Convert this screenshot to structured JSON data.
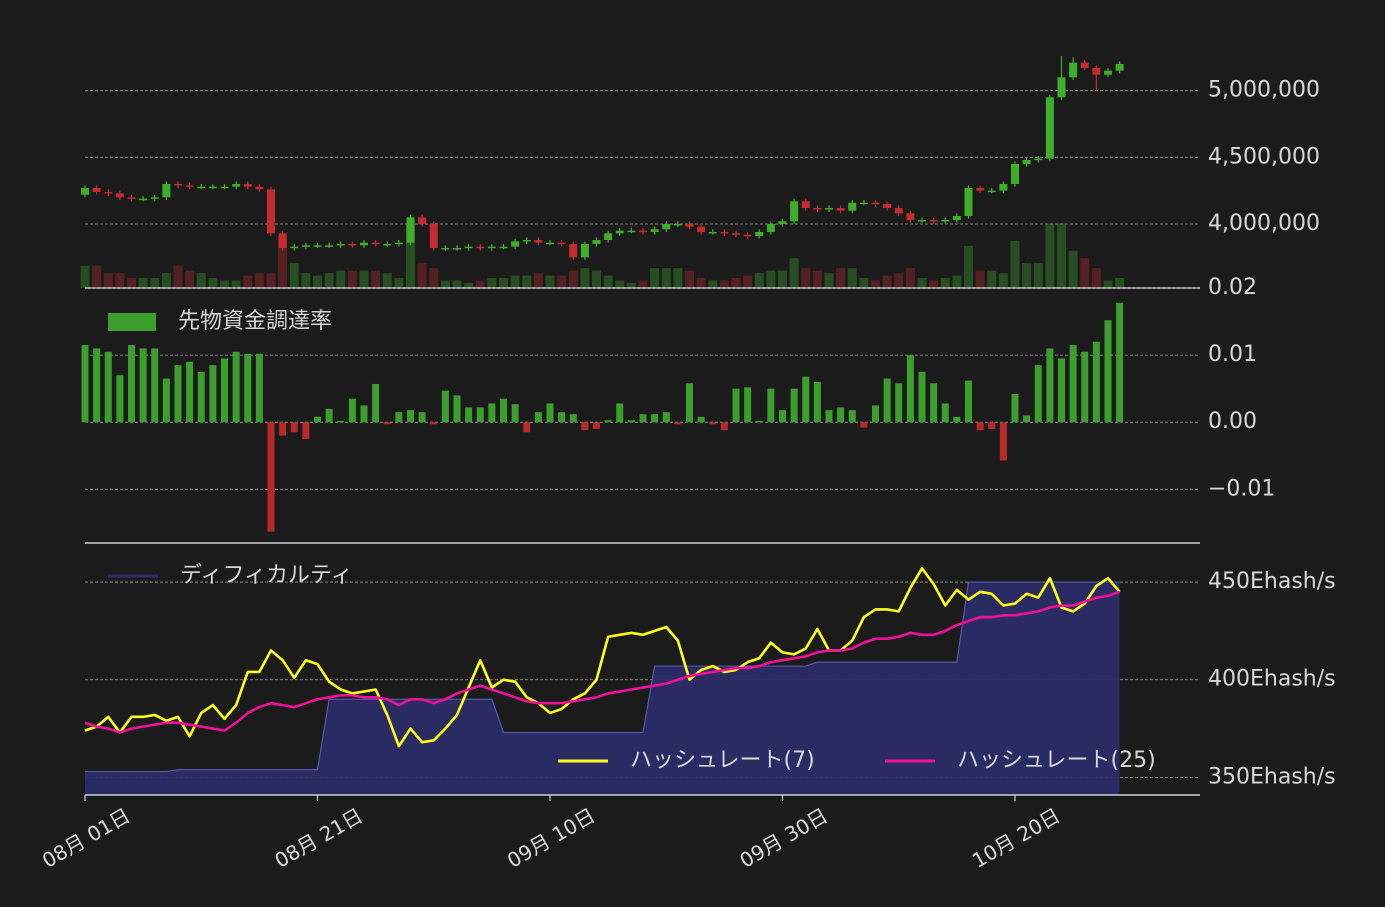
{
  "chart_data": [
    {
      "type": "candlestick",
      "up_color": "#3fae2a",
      "down_color": "#c42a30",
      "open": [
        4220000,
        4270000,
        4240000,
        4230000,
        4200000,
        4190000,
        4190000,
        4200000,
        4300000,
        4290000,
        4280000,
        4280000,
        4280000,
        4280000,
        4300000,
        4280000,
        4260000,
        3930000,
        3820000,
        3830000,
        3840000,
        3840000,
        3840000,
        3850000,
        3840000,
        3860000,
        3850000,
        3850000,
        3860000,
        4050000,
        4000000,
        3820000,
        3820000,
        3820000,
        3830000,
        3820000,
        3830000,
        3830000,
        3870000,
        3880000,
        3860000,
        3860000,
        3850000,
        3750000,
        3850000,
        3880000,
        3930000,
        3950000,
        3950000,
        3940000,
        3960000,
        4000000,
        4000000,
        3980000,
        3940000,
        3940000,
        3930000,
        3920000,
        3910000,
        3940000,
        4000000,
        4020000,
        4170000,
        4120000,
        4110000,
        4120000,
        4100000,
        4160000,
        4160000,
        4150000,
        4120000,
        4080000,
        4030000,
        4030000,
        4020000,
        4030000,
        4060000,
        4270000,
        4250000,
        4250000,
        4300000,
        4450000,
        4480000,
        4490000,
        4950000,
        5100000,
        5210000,
        5170000,
        5120000,
        5150000
      ],
      "high": [
        4290000,
        4290000,
        4260000,
        4250000,
        4220000,
        4210000,
        4220000,
        4320000,
        4320000,
        4310000,
        4300000,
        4300000,
        4300000,
        4320000,
        4320000,
        4300000,
        4280000,
        3950000,
        3850000,
        3860000,
        3860000,
        3860000,
        3870000,
        3870000,
        3880000,
        3880000,
        3870000,
        3880000,
        4070000,
        4070000,
        4020000,
        3840000,
        3840000,
        3850000,
        3850000,
        3850000,
        3850000,
        3890000,
        3900000,
        3900000,
        3880000,
        3880000,
        3870000,
        3870000,
        3900000,
        3950000,
        3970000,
        3970000,
        3970000,
        3980000,
        4020000,
        4020000,
        4020000,
        4000000,
        3960000,
        3960000,
        3950000,
        3940000,
        3960000,
        4020000,
        4040000,
        4190000,
        4190000,
        4140000,
        4140000,
        4140000,
        4180000,
        4180000,
        4180000,
        4170000,
        4140000,
        4100000,
        4050000,
        4050000,
        4050000,
        4080000,
        4290000,
        4290000,
        4270000,
        4320000,
        4470000,
        4500000,
        4510000,
        4970000,
        5260000,
        5250000,
        5230000,
        5190000,
        5170000,
        5220000
      ],
      "low": [
        4200000,
        4220000,
        4210000,
        4180000,
        4170000,
        4170000,
        4170000,
        4180000,
        4270000,
        4260000,
        4260000,
        4260000,
        4260000,
        4260000,
        4260000,
        4240000,
        3910000,
        3800000,
        3800000,
        3810000,
        3820000,
        3820000,
        3820000,
        3820000,
        3820000,
        3830000,
        3830000,
        3830000,
        3840000,
        3980000,
        3800000,
        3800000,
        3800000,
        3800000,
        3800000,
        3800000,
        3810000,
        3810000,
        3850000,
        3840000,
        3840000,
        3830000,
        3730000,
        3730000,
        3830000,
        3860000,
        3910000,
        3930000,
        3920000,
        3920000,
        3940000,
        3980000,
        3960000,
        3920000,
        3920000,
        3910000,
        3900000,
        3890000,
        3890000,
        3920000,
        3980000,
        4000000,
        4100000,
        4090000,
        4090000,
        4080000,
        4080000,
        4140000,
        4130000,
        4100000,
        4060000,
        4010000,
        4010000,
        4000000,
        4000000,
        4010000,
        4040000,
        4230000,
        4230000,
        4230000,
        4280000,
        4430000,
        4460000,
        4470000,
        4930000,
        5080000,
        5150000,
        5000000,
        5100000,
        5130000
      ],
      "close": [
        4270000,
        4240000,
        4230000,
        4200000,
        4190000,
        4190000,
        4200000,
        4300000,
        4290000,
        4280000,
        4280000,
        4280000,
        4280000,
        4300000,
        4280000,
        4260000,
        3930000,
        3820000,
        3830000,
        3840000,
        3840000,
        3840000,
        3850000,
        3840000,
        3860000,
        3850000,
        3850000,
        3860000,
        4050000,
        4000000,
        3820000,
        3820000,
        3820000,
        3830000,
        3820000,
        3830000,
        3830000,
        3870000,
        3880000,
        3860000,
        3860000,
        3850000,
        3750000,
        3850000,
        3880000,
        3930000,
        3950000,
        3950000,
        3940000,
        3960000,
        4000000,
        4000000,
        3980000,
        3940000,
        3940000,
        3930000,
        3920000,
        3910000,
        3940000,
        4000000,
        4020000,
        4170000,
        4120000,
        4110000,
        4120000,
        4100000,
        4160000,
        4160000,
        4150000,
        4120000,
        4080000,
        4030000,
        4030000,
        4020000,
        4030000,
        4060000,
        4270000,
        4250000,
        4250000,
        4300000,
        4450000,
        4480000,
        4490000,
        4950000,
        5100000,
        5210000,
        5170000,
        5120000,
        5150000,
        5200000
      ],
      "volume": {
        "axis": "y2",
        "values": [
          9,
          9,
          6,
          6,
          4,
          4,
          4,
          6,
          9,
          7,
          6,
          4,
          3,
          3,
          5,
          6,
          6,
          21,
          10,
          6,
          5,
          6,
          7,
          7,
          7,
          7,
          6,
          4,
          26,
          10,
          8,
          3,
          3,
          2,
          3,
          4,
          4,
          5,
          5,
          6,
          5,
          5,
          7,
          8,
          7,
          5,
          3,
          2,
          3,
          8,
          8,
          8,
          7,
          4,
          3,
          3,
          4,
          5,
          6,
          7,
          7,
          12,
          8,
          7,
          6,
          8,
          8,
          4,
          3,
          5,
          6,
          8,
          4,
          3,
          4,
          5,
          17,
          7,
          7,
          6,
          19,
          10,
          10,
          26,
          26,
          15,
          12,
          8,
          3,
          4
        ]
      },
      "ylim": [
        3520000,
        5380000
      ],
      "yticks": [
        {
          "value": 4000000,
          "label": "4,000,000"
        },
        {
          "value": 4500000,
          "label": "4,500,000"
        },
        {
          "value": 5000000,
          "label": "5,000,000"
        }
      ],
      "y2lim": [
        0,
        100
      ],
      "grid": true
    },
    {
      "type": "bar",
      "negative_color": "#b82a2a",
      "series": [
        {
          "name": "先物資金調達率",
          "color": "#3c9e2c",
          "values": [
            0.0115,
            0.011,
            0.0105,
            0.007,
            0.0115,
            0.011,
            0.011,
            0.0065,
            0.0085,
            0.009,
            0.0075,
            0.0085,
            0.0095,
            0.0105,
            0.0102,
            0.0102,
            -0.0163,
            -0.002,
            -0.0015,
            -0.0025,
            0.0008,
            0.002,
            0.0002,
            0.0035,
            0.0025,
            0.0057,
            -0.0003,
            0.0015,
            0.0018,
            0.0015,
            -0.0003,
            0.0047,
            0.004,
            0.0022,
            0.0022,
            0.0028,
            0.0035,
            0.0027,
            -0.0015,
            0.0015,
            0.0028,
            0.0015,
            0.0012,
            -0.0012,
            -0.001,
            0.0003,
            0.0028,
            0.0003,
            0.0012,
            0.0012,
            0.0015,
            -0.0003,
            0.0058,
            0.0008,
            -0.0003,
            -0.0012,
            0.005,
            0.0052,
            0.0002,
            0.005,
            0.0018,
            0.005,
            0.0068,
            0.006,
            0.0018,
            0.0022,
            0.0018,
            -0.0008,
            0.0025,
            0.0065,
            0.0058,
            0.01,
            0.0075,
            0.0058,
            0.0028,
            0.0008,
            0.0062,
            -0.0012,
            -0.001,
            -0.0057,
            0.0042,
            0.001,
            0.0085,
            0.011,
            0.0095,
            0.0115,
            0.0105,
            0.012,
            0.0152,
            0.0178
          ]
        }
      ],
      "ylim": [
        -0.018,
        0.02
      ],
      "yticks": [
        {
          "value": -0.01,
          "label": "−0.01"
        },
        {
          "value": 0,
          "label": "0.00"
        },
        0.01,
        0.02
      ],
      "grid": true
    },
    {
      "type": "line",
      "categories": [
        "08月 01日",
        null,
        null,
        null,
        null,
        null,
        null,
        null,
        null,
        null,
        null,
        null,
        null,
        null,
        null,
        null,
        null,
        null,
        null,
        null,
        "08月 21日",
        null,
        null,
        null,
        null,
        null,
        null,
        null,
        null,
        null,
        null,
        null,
        null,
        null,
        null,
        null,
        null,
        null,
        null,
        null,
        "09月 10日",
        null,
        null,
        null,
        null,
        null,
        null,
        null,
        null,
        null,
        null,
        null,
        null,
        null,
        null,
        null,
        null,
        null,
        null,
        null,
        "09月 30日",
        null,
        null,
        null,
        null,
        null,
        null,
        null,
        null,
        null,
        null,
        null,
        null,
        null,
        null,
        null,
        null,
        null,
        null,
        null,
        "10月 20日",
        null,
        null,
        null,
        null,
        null,
        null,
        null,
        null,
        null
      ],
      "series": [
        {
          "name": "ディフィカルティ",
          "type": "area",
          "color": "#2c2c68",
          "values": [
            353,
            353,
            353,
            353,
            353,
            353,
            353,
            353,
            354,
            354,
            354,
            354,
            354,
            354,
            354,
            354,
            354,
            354,
            354,
            354,
            354,
            390,
            390,
            390,
            390,
            390,
            390,
            390,
            390,
            390,
            390,
            390,
            390,
            390,
            390,
            390,
            373,
            373,
            373,
            373,
            373,
            373,
            373,
            373,
            373,
            373,
            373,
            373,
            373,
            407,
            407,
            407,
            407,
            407,
            407,
            407,
            407,
            407,
            407,
            407,
            407,
            407,
            407,
            409,
            409,
            409,
            409,
            409,
            409,
            409,
            409,
            409,
            409,
            409,
            409,
            409,
            450,
            450,
            450,
            450,
            450,
            450,
            450,
            450,
            450,
            450,
            450,
            450,
            450,
            450
          ]
        },
        {
          "name": "ハッシュレート(7)",
          "color": "#ffff1e",
          "values": [
            374,
            376,
            381,
            373,
            381,
            381,
            382,
            379,
            381,
            371,
            383,
            387,
            380,
            387,
            404,
            404,
            415,
            410,
            401,
            410,
            408,
            399,
            395,
            393,
            394,
            395,
            382,
            366,
            375,
            368,
            369,
            375,
            382,
            396,
            410,
            396,
            400,
            399,
            391,
            388,
            383,
            385,
            390,
            393,
            400,
            422,
            423,
            424,
            423,
            425,
            427,
            420,
            400,
            405,
            407,
            404,
            405,
            409,
            411,
            419,
            414,
            413,
            416,
            426,
            415,
            415,
            420,
            432,
            436,
            436,
            435,
            447,
            457,
            449,
            438,
            446,
            441,
            445,
            444,
            438,
            439,
            444,
            442,
            452,
            437,
            435,
            439,
            448,
            452,
            445
          ]
        },
        {
          "name": "ハッシュレート(25)",
          "color": "#ee1199",
          "values": [
            378,
            376,
            375,
            373,
            375,
            376,
            377,
            378,
            378,
            377,
            376,
            375,
            374,
            378,
            383,
            386,
            388,
            387,
            386,
            388,
            390,
            391,
            392,
            392,
            391,
            391,
            390,
            387,
            390,
            390,
            388,
            390,
            393,
            395,
            397,
            395,
            393,
            391,
            389,
            388,
            388,
            388,
            389,
            390,
            391,
            393,
            394,
            395,
            396,
            397,
            398,
            400,
            402,
            403,
            404,
            405,
            406,
            406,
            407,
            409,
            410,
            411,
            412,
            414,
            415,
            415,
            416,
            419,
            421,
            421,
            422,
            424,
            423,
            423,
            425,
            428,
            430,
            432,
            432,
            433,
            433,
            434,
            435,
            437,
            438,
            438,
            440,
            442,
            443,
            445
          ]
        }
      ],
      "ylim": [
        341,
        470
      ],
      "yticks": [
        {
          "value": 350,
          "label": "350Ehash/s"
        },
        {
          "value": 400,
          "label": "400Ehash/s"
        },
        {
          "value": 450,
          "label": "450Ehash/s"
        }
      ],
      "grid": true
    }
  ]
}
